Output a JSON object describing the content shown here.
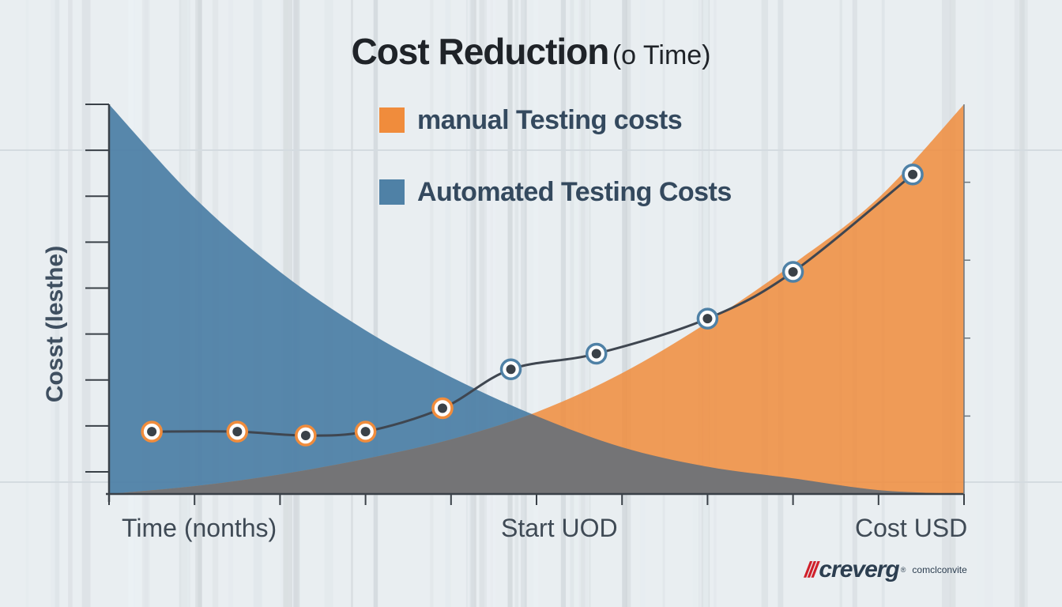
{
  "title": {
    "main": "Cost Reduction",
    "sub": "(o Time)"
  },
  "legend": [
    {
      "label": "manual Testing costs",
      "color": "#f08c3c"
    },
    {
      "label": "Automated Testing Costs",
      "color": "#4f81a6"
    }
  ],
  "axis_labels": {
    "y": "Cosst (lesthe)",
    "x_left": "Time (nonths)",
    "x_mid": "Start UOD",
    "x_right": "Cost USD"
  },
  "watermark": {
    "mark": "///",
    "brand": "creverg",
    "reg": "®",
    "tagline": "comclconvite"
  },
  "colors": {
    "blue_area": "#4f81a6",
    "orange_area": "#f08c3c",
    "overlap": "#6b7279",
    "line": "#3f4650",
    "marker_orange": "#f08c3c",
    "marker_blue": "#4f81a6"
  },
  "chart_data": {
    "type": "area",
    "x": [
      0,
      1,
      2,
      3,
      4,
      5,
      6,
      7,
      8,
      9,
      10
    ],
    "ylim": [
      0,
      100
    ],
    "xlim": [
      0,
      10
    ],
    "grid": false,
    "legend_position": "top-center",
    "series": [
      {
        "name": "manual Testing costs",
        "type": "area",
        "values": [
          0,
          2,
          5,
          9,
          14,
          21,
          31,
          44,
          59,
          76,
          100
        ]
      },
      {
        "name": "Automated Testing Costs",
        "type": "area",
        "values": [
          100,
          76,
          57,
          42,
          30,
          20,
          12,
          7,
          4,
          1,
          0
        ]
      },
      {
        "type": "line",
        "points": [
          {
            "x": 0.5,
            "y": 16,
            "marker": "orange"
          },
          {
            "x": 1.5,
            "y": 16,
            "marker": "orange"
          },
          {
            "x": 2.3,
            "y": 15,
            "marker": "orange"
          },
          {
            "x": 3.0,
            "y": 16,
            "marker": "orange"
          },
          {
            "x": 3.9,
            "y": 22,
            "marker": "orange"
          },
          {
            "x": 4.7,
            "y": 32,
            "marker": "blue"
          },
          {
            "x": 5.7,
            "y": 36,
            "marker": "blue"
          },
          {
            "x": 7.0,
            "y": 45,
            "marker": "blue"
          },
          {
            "x": 8.0,
            "y": 57,
            "marker": "blue"
          },
          {
            "x": 9.4,
            "y": 82,
            "marker": "blue"
          }
        ]
      }
    ]
  }
}
